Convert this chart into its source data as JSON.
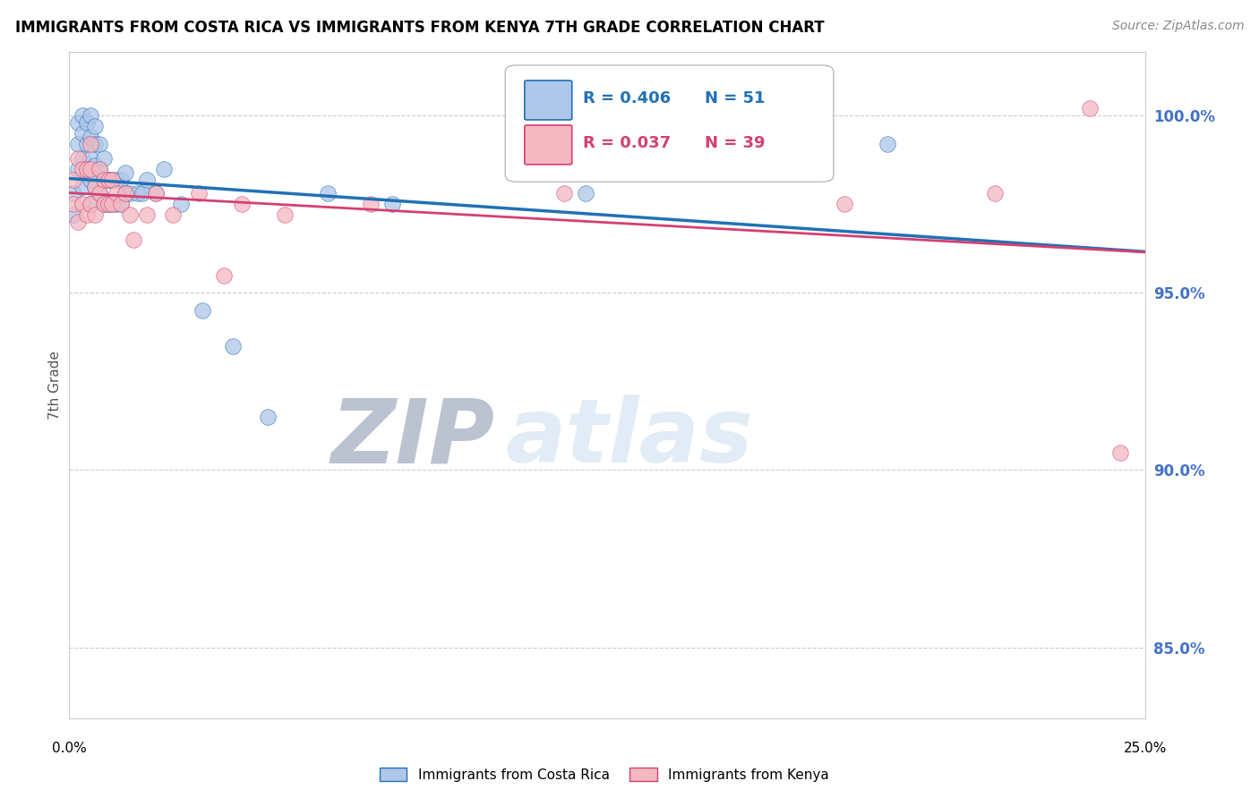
{
  "title": "IMMIGRANTS FROM COSTA RICA VS IMMIGRANTS FROM KENYA 7TH GRADE CORRELATION CHART",
  "source_text": "Source: ZipAtlas.com",
  "ylabel": "7th Grade",
  "right_yticks": [
    85.0,
    90.0,
    95.0,
    100.0
  ],
  "legend_blue_label": "Immigrants from Costa Rica",
  "legend_pink_label": "Immigrants from Kenya",
  "R_blue": 0.406,
  "N_blue": 51,
  "R_pink": 0.037,
  "N_pink": 39,
  "blue_color": "#aec6e8",
  "pink_color": "#f4b8c1",
  "trendline_blue_color": "#2171b5",
  "trendline_pink_color": "#d44070",
  "watermark_color": "#dce9f5",
  "watermark_text": "ZIPatlas",
  "x_min": 0.0,
  "x_max": 0.25,
  "y_min": 83.0,
  "y_max": 101.8,
  "blue_scatter_x": [
    0.001,
    0.001,
    0.002,
    0.002,
    0.002,
    0.003,
    0.003,
    0.003,
    0.003,
    0.004,
    0.004,
    0.004,
    0.005,
    0.005,
    0.005,
    0.005,
    0.005,
    0.006,
    0.006,
    0.006,
    0.006,
    0.007,
    0.007,
    0.007,
    0.008,
    0.008,
    0.008,
    0.009,
    0.009,
    0.01,
    0.01,
    0.011,
    0.011,
    0.012,
    0.012,
    0.013,
    0.013,
    0.014,
    0.016,
    0.017,
    0.018,
    0.02,
    0.022,
    0.026,
    0.031,
    0.038,
    0.046,
    0.06,
    0.075,
    0.12,
    0.19
  ],
  "blue_scatter_y": [
    97.2,
    97.8,
    98.5,
    99.2,
    99.8,
    98.0,
    98.8,
    99.5,
    100.0,
    98.5,
    99.2,
    99.8,
    97.5,
    98.2,
    98.8,
    99.4,
    100.0,
    98.0,
    98.6,
    99.2,
    99.7,
    97.8,
    98.5,
    99.2,
    97.5,
    98.2,
    98.8,
    97.5,
    98.2,
    97.5,
    98.2,
    97.5,
    98.2,
    97.5,
    98.2,
    97.8,
    98.4,
    97.8,
    97.8,
    97.8,
    98.2,
    97.8,
    98.5,
    97.5,
    94.5,
    93.5,
    91.5,
    97.8,
    97.5,
    97.8,
    99.2
  ],
  "pink_scatter_x": [
    0.001,
    0.001,
    0.002,
    0.002,
    0.003,
    0.003,
    0.004,
    0.004,
    0.005,
    0.005,
    0.005,
    0.006,
    0.006,
    0.007,
    0.007,
    0.008,
    0.008,
    0.009,
    0.009,
    0.01,
    0.01,
    0.011,
    0.012,
    0.013,
    0.014,
    0.015,
    0.018,
    0.02,
    0.024,
    0.03,
    0.036,
    0.04,
    0.05,
    0.07,
    0.115,
    0.18,
    0.215,
    0.237,
    0.244
  ],
  "pink_scatter_y": [
    97.5,
    98.2,
    97.0,
    98.8,
    97.5,
    98.5,
    97.2,
    98.5,
    97.5,
    98.5,
    99.2,
    97.2,
    98.0,
    97.8,
    98.5,
    97.5,
    98.2,
    97.5,
    98.2,
    97.5,
    98.2,
    97.8,
    97.5,
    97.8,
    97.2,
    96.5,
    97.2,
    97.8,
    97.2,
    97.8,
    95.5,
    97.5,
    97.2,
    97.5,
    97.8,
    97.5,
    97.8,
    100.2,
    90.5
  ]
}
